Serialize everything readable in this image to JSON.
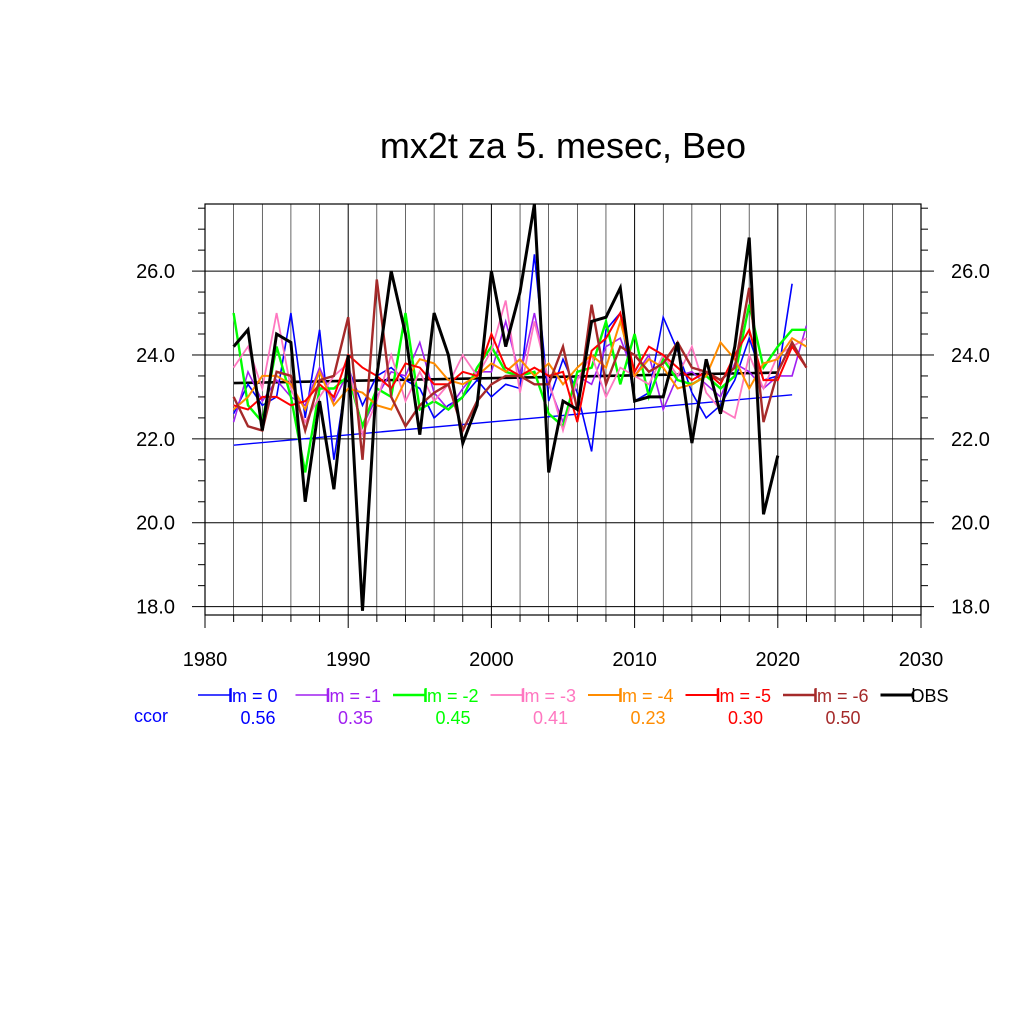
{
  "chart_data": {
    "type": "line",
    "title": "mx2t za 5. mesec, Beo",
    "xlabel": "",
    "ylabel": "",
    "xlim": [
      1980,
      2030
    ],
    "ylim": [
      17.8,
      27.6
    ],
    "x_ticks": [
      "1980",
      "1990",
      "2000",
      "2010",
      "2020",
      "2030"
    ],
    "y_ticks": [
      "18.0",
      "20.0",
      "22.0",
      "24.0",
      "26.0"
    ],
    "grid": true,
    "legend_position": "bottom",
    "ccor_label": "ccor",
    "series": [
      {
        "name": "lm = 0",
        "color": "#0000ff",
        "width": 1.6,
        "ccor": "0.56",
        "x": [
          1982,
          1983,
          1984,
          1985,
          1986,
          1987,
          1988,
          1989,
          1990,
          1991,
          1992,
          1993,
          1994,
          1995,
          1996,
          1997,
          1998,
          1999,
          2000,
          2001,
          2002,
          2003,
          2004,
          2005,
          2006,
          2007,
          2008,
          2009,
          2010,
          2011,
          2012,
          2013,
          2014,
          2015,
          2016,
          2017,
          2018,
          2019,
          2020,
          2021
        ],
        "y": [
          22.6,
          23.3,
          22.8,
          23.0,
          25.0,
          22.5,
          24.6,
          21.5,
          23.7,
          22.8,
          23.5,
          23.7,
          23.4,
          23.2,
          22.5,
          22.8,
          23.0,
          23.4,
          23.0,
          23.3,
          23.2,
          26.4,
          22.9,
          23.9,
          23.1,
          21.7,
          24.6,
          25.0,
          22.9,
          23.1,
          24.9,
          24.1,
          23.1,
          22.5,
          22.8,
          23.4,
          24.4,
          23.4,
          23.5,
          25.7
        ]
      },
      {
        "name": "lm = -1",
        "color": "#a020f0",
        "width": 1.6,
        "ccor": "0.35",
        "x": [
          1982,
          1983,
          1984,
          1985,
          1986,
          1987,
          1988,
          1989,
          1990,
          1991,
          1992,
          1993,
          1994,
          1995,
          1996,
          1997,
          1998,
          1999,
          2000,
          2001,
          2002,
          2003,
          2004,
          2005,
          2006,
          2007,
          2008,
          2009,
          2010,
          2011,
          2012,
          2013,
          2014,
          2015,
          2016,
          2017,
          2018,
          2019,
          2020,
          2021,
          2022
        ],
        "y": [
          22.4,
          23.6,
          22.9,
          23.4,
          23.0,
          22.8,
          23.7,
          22.9,
          23.6,
          22.3,
          23.0,
          23.6,
          23.5,
          24.3,
          23.1,
          22.7,
          23.2,
          23.6,
          23.6,
          24.8,
          23.5,
          25.0,
          23.3,
          22.4,
          23.5,
          23.3,
          24.2,
          24.4,
          23.5,
          24.0,
          22.7,
          23.5,
          23.6,
          23.3,
          23.0,
          23.8,
          23.6,
          23.2,
          23.5,
          23.5,
          24.7
        ]
      },
      {
        "name": "lm = -2",
        "color": "#00ff00",
        "width": 2.4,
        "ccor": "0.45",
        "x": [
          1982,
          1983,
          1984,
          1985,
          1986,
          1987,
          1988,
          1989,
          1990,
          1991,
          1992,
          1993,
          1994,
          1995,
          1996,
          1997,
          1998,
          1999,
          2000,
          2001,
          2002,
          2003,
          2004,
          2005,
          2006,
          2007,
          2008,
          2009,
          2010,
          2011,
          2012,
          2013,
          2014,
          2015,
          2016,
          2017,
          2018,
          2019,
          2020,
          2021,
          2022
        ],
        "y": [
          25.0,
          22.8,
          22.4,
          24.2,
          23.0,
          21.2,
          23.2,
          23.2,
          23.5,
          22.3,
          23.2,
          23.0,
          25.0,
          22.7,
          22.9,
          22.7,
          23.0,
          23.7,
          24.2,
          23.6,
          23.5,
          23.6,
          22.6,
          22.3,
          23.6,
          23.7,
          24.8,
          23.3,
          24.5,
          23.0,
          23.9,
          23.4,
          23.3,
          23.5,
          23.2,
          23.5,
          25.2,
          23.7,
          24.2,
          24.6,
          24.6
        ]
      },
      {
        "name": "lm = -3",
        "color": "#ff77c0",
        "width": 1.8,
        "ccor": "0.41",
        "x": [
          1982,
          1983,
          1984,
          1985,
          1986,
          1987,
          1988,
          1989,
          1990,
          1991,
          1992,
          1993,
          1994,
          1995,
          1996,
          1997,
          1998,
          1999,
          2000,
          2001,
          2002,
          2003,
          2004,
          2005,
          2006,
          2007,
          2008,
          2009,
          2010,
          2011,
          2012,
          2013,
          2014,
          2015,
          2016,
          2017,
          2018,
          2019,
          2020,
          2021,
          2022
        ],
        "y": [
          23.7,
          24.2,
          23.2,
          25.0,
          23.2,
          22.4,
          23.0,
          23.5,
          23.8,
          22.1,
          22.9,
          24.0,
          22.9,
          23.6,
          22.9,
          23.3,
          24.0,
          23.5,
          24.1,
          25.3,
          23.1,
          24.8,
          23.4,
          22.2,
          23.4,
          24.0,
          23.0,
          23.7,
          23.5,
          23.3,
          24.0,
          23.5,
          24.2,
          23.1,
          22.7,
          22.5,
          24.0,
          23.2,
          24.0,
          24.2,
          24.4
        ]
      },
      {
        "name": "lm = -4",
        "color": "#ff8c00",
        "width": 2.0,
        "ccor": "0.23",
        "x": [
          1982,
          1983,
          1984,
          1985,
          1986,
          1987,
          1988,
          1989,
          1990,
          1991,
          1992,
          1993,
          1994,
          1995,
          1996,
          1997,
          1998,
          1999,
          2000,
          2001,
          2002,
          2003,
          2004,
          2005,
          2006,
          2007,
          2008,
          2009,
          2010,
          2011,
          2012,
          2013,
          2014,
          2015,
          2016,
          2017,
          2018,
          2019,
          2020,
          2021,
          2022
        ],
        "y": [
          22.7,
          23.0,
          23.5,
          23.5,
          23.3,
          22.7,
          23.6,
          22.8,
          23.2,
          23.1,
          22.8,
          22.7,
          23.4,
          23.9,
          23.8,
          23.4,
          23.3,
          23.5,
          23.8,
          23.6,
          23.9,
          23.5,
          23.8,
          23.3,
          23.7,
          24.0,
          23.7,
          24.8,
          23.5,
          23.9,
          23.7,
          23.2,
          23.3,
          23.5,
          24.3,
          23.9,
          23.2,
          23.8,
          23.9,
          24.4,
          24.2
        ]
      },
      {
        "name": "lm = -5",
        "color": "#ff0000",
        "width": 2.0,
        "ccor": "0.30",
        "x": [
          1982,
          1983,
          1984,
          1985,
          1986,
          1987,
          1988,
          1989,
          1990,
          1991,
          1992,
          1993,
          1994,
          1995,
          1996,
          1997,
          1998,
          1999,
          2000,
          2001,
          2002,
          2003,
          2004,
          2005,
          2006,
          2007,
          2008,
          2009,
          2010,
          2011,
          2012,
          2013,
          2014,
          2015,
          2016,
          2017,
          2018,
          2019,
          2020,
          2021,
          2022
        ],
        "y": [
          22.8,
          22.7,
          23.0,
          23.0,
          22.8,
          22.9,
          23.3,
          23.0,
          24.0,
          23.7,
          23.5,
          23.2,
          23.8,
          23.7,
          23.3,
          23.3,
          23.6,
          23.5,
          24.5,
          23.7,
          23.5,
          23.7,
          23.5,
          23.6,
          22.4,
          24.1,
          24.4,
          25.0,
          23.6,
          24.2,
          24.0,
          23.7,
          23.4,
          23.6,
          23.3,
          24.0,
          24.6,
          23.4,
          23.4,
          24.2,
          23.7
        ]
      },
      {
        "name": "lm = -6",
        "color": "#a52a2a",
        "width": 2.4,
        "ccor": "0.50",
        "x": [
          1982,
          1983,
          1984,
          1985,
          1986,
          1987,
          1988,
          1989,
          1990,
          1991,
          1992,
          1993,
          1994,
          1995,
          1996,
          1997,
          1998,
          1999,
          2000,
          2001,
          2002,
          2003,
          2004,
          2005,
          2006,
          2007,
          2008,
          2009,
          2010,
          2011,
          2012,
          2013,
          2014,
          2015,
          2016,
          2017,
          2018,
          2019,
          2020,
          2021,
          2022
        ],
        "y": [
          23.0,
          22.3,
          22.2,
          23.6,
          23.5,
          22.2,
          23.4,
          23.5,
          24.9,
          21.5,
          25.8,
          23.0,
          22.3,
          22.8,
          23.1,
          23.3,
          22.2,
          22.9,
          23.3,
          23.5,
          23.5,
          23.3,
          23.3,
          24.2,
          22.7,
          25.2,
          23.3,
          24.2,
          24.0,
          23.6,
          23.8,
          24.3,
          23.7,
          23.6,
          23.4,
          23.7,
          25.6,
          22.4,
          23.6,
          24.3,
          23.7
        ]
      },
      {
        "name": "OBS",
        "color": "#000000",
        "width": 3.0,
        "ccor": "",
        "x": [
          1982,
          1983,
          1984,
          1985,
          1986,
          1987,
          1988,
          1989,
          1990,
          1991,
          1992,
          1993,
          1994,
          1995,
          1996,
          1997,
          1998,
          1999,
          2000,
          2001,
          2002,
          2003,
          2004,
          2005,
          2006,
          2007,
          2008,
          2009,
          2010,
          2011,
          2012,
          2013,
          2014,
          2015,
          2016,
          2017,
          2018,
          2019,
          2020
        ],
        "y": [
          24.2,
          24.6,
          22.2,
          24.5,
          24.3,
          20.5,
          22.9,
          20.8,
          24.0,
          17.9,
          23.5,
          26.0,
          24.5,
          22.1,
          25.0,
          24.0,
          21.9,
          22.8,
          26.0,
          24.2,
          25.5,
          27.6,
          21.2,
          22.9,
          22.7,
          24.8,
          24.9,
          25.6,
          22.9,
          23.0,
          23.0,
          24.3,
          21.9,
          23.9,
          22.6,
          24.2,
          26.8,
          20.2,
          21.6
        ]
      }
    ],
    "trend_lines": [
      {
        "name": "lm = 0 trend",
        "color": "#0000ff",
        "width": 1.4,
        "x": [
          1982,
          2021
        ],
        "y": [
          21.85,
          23.05
        ]
      },
      {
        "name": "OBS trend",
        "color": "#000000",
        "width": 2.6,
        "x": [
          1982,
          2020
        ],
        "y": [
          23.33,
          23.58
        ]
      }
    ]
  }
}
